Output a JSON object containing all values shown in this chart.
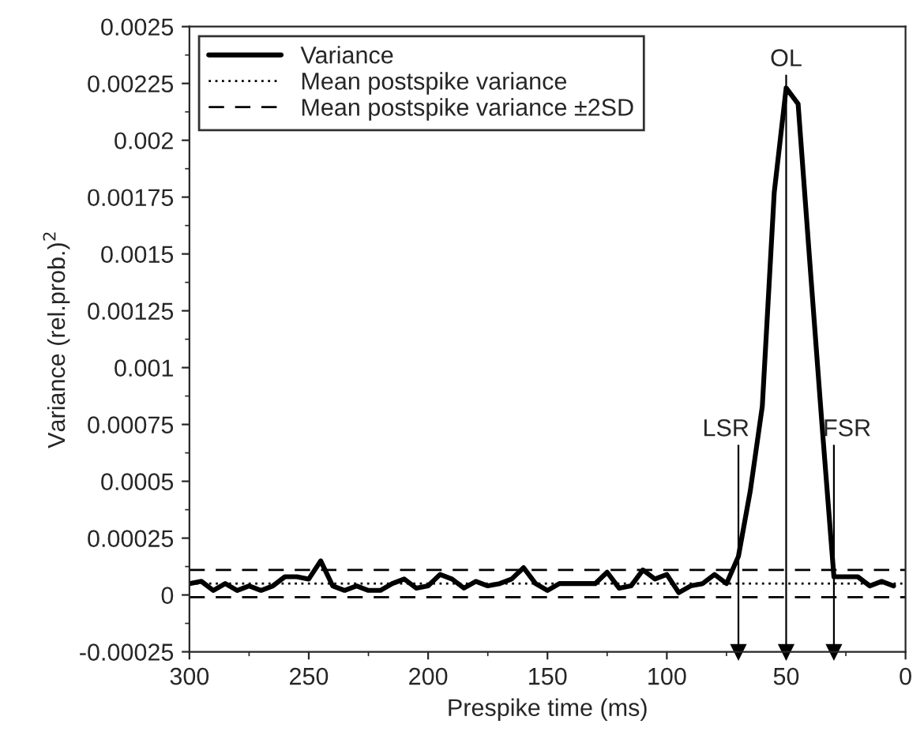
{
  "chart_data": {
    "type": "line",
    "xlabel": "Prespike time (ms)",
    "ylabel": "Variance (rel.prob.)$^{2}$",
    "x": [
      300,
      295,
      290,
      285,
      280,
      275,
      270,
      265,
      260,
      255,
      250,
      245,
      240,
      235,
      230,
      225,
      220,
      215,
      210,
      205,
      200,
      195,
      190,
      185,
      180,
      175,
      170,
      165,
      160,
      155,
      150,
      145,
      140,
      135,
      130,
      125,
      120,
      115,
      110,
      105,
      100,
      95,
      90,
      85,
      80,
      75,
      70,
      65,
      60,
      55,
      50,
      45,
      40,
      35,
      30,
      25,
      20,
      15,
      10,
      5
    ],
    "series": [
      {
        "name": "Variance",
        "color": "#000000",
        "line_style": "solid",
        "values": [
          5e-05,
          6e-05,
          2e-05,
          5e-05,
          2e-05,
          4e-05,
          2e-05,
          4e-05,
          8e-05,
          8e-05,
          7e-05,
          0.00015,
          4e-05,
          2e-05,
          4e-05,
          2e-05,
          2e-05,
          5e-05,
          7e-05,
          3e-05,
          4e-05,
          9e-05,
          7e-05,
          3e-05,
          6e-05,
          4e-05,
          5e-05,
          7e-05,
          0.00012,
          5e-05,
          2e-05,
          5e-05,
          5e-05,
          5e-05,
          5e-05,
          0.0001,
          3e-05,
          4e-05,
          0.00011,
          7e-05,
          9e-05,
          1e-05,
          4e-05,
          5e-05,
          9e-05,
          5e-05,
          0.00017,
          0.00046,
          0.00083,
          0.00177,
          0.00223,
          0.00216,
          0.00145,
          0.00075,
          8e-05,
          8e-05,
          8e-05,
          4e-05,
          6e-05,
          4e-05
        ]
      }
    ],
    "ref_lines": [
      {
        "axis": "y",
        "value": 5e-05,
        "label": "Mean postspike variance",
        "line_style": "dotted",
        "color": "#000000"
      },
      {
        "axis": "y",
        "value": 0.00011,
        "label": "Mean postspike variance ±2SD",
        "line_style": "dashed",
        "color": "#000000"
      },
      {
        "axis": "y",
        "value": -1e-05,
        "line_style": "dashed",
        "color": "#000000"
      },
      {
        "axis": "x",
        "value": 70,
        "label": "LSR",
        "line_style": "solid",
        "color": "#000000"
      },
      {
        "axis": "x",
        "value": 50,
        "label": "OL",
        "line_style": "solid",
        "color": "#000000"
      },
      {
        "axis": "x",
        "value": 30,
        "label": "FSR",
        "line_style": "solid",
        "color": "#000000"
      }
    ],
    "xlim": [
      300,
      0
    ],
    "xticks": [
      300,
      250,
      200,
      150,
      100,
      50,
      0
    ],
    "ylim": [
      -0.00025,
      0.0025
    ],
    "yticks": [
      {
        "value": -0.00025,
        "label": "-0.00025"
      },
      0,
      {
        "value": 0.00025,
        "label": "0.00025"
      },
      {
        "value": 0.0005,
        "label": "0.0005"
      },
      {
        "value": 0.00075,
        "label": "0.00075"
      },
      {
        "value": 0.001,
        "label": "0.001"
      },
      {
        "value": 0.00125,
        "label": "0.00125"
      },
      {
        "value": 0.0015,
        "label": "0.0015"
      },
      {
        "value": 0.00175,
        "label": "0.00175"
      },
      {
        "value": 0.002,
        "label": "0.002"
      },
      {
        "value": 0.00225,
        "label": "0.00225"
      },
      {
        "value": 0.0025,
        "label": "0.0025"
      }
    ],
    "legend": "top left",
    "grid": false
  }
}
